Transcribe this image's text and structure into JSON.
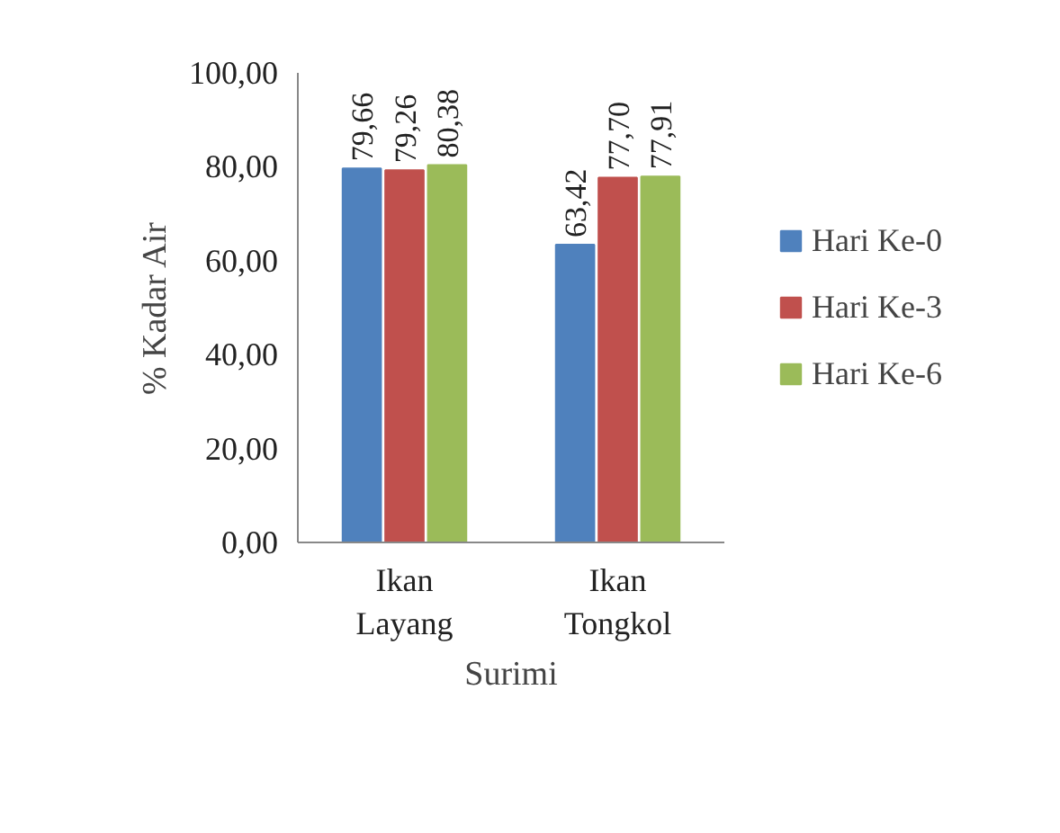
{
  "chart_data": {
    "type": "bar",
    "xlabel": "Surimi",
    "ylabel": "% Kadar Air",
    "categories": [
      "Ikan Layang",
      "Ikan Tongkol"
    ],
    "series": [
      {
        "name": "Hari Ke-0",
        "color": "#4f81bd",
        "values": [
          79.66,
          63.42
        ],
        "value_labels": [
          "79,66",
          "63,42"
        ]
      },
      {
        "name": "Hari Ke-3",
        "color": "#c0504d",
        "values": [
          79.26,
          77.7
        ],
        "value_labels": [
          "79,26",
          "77,70"
        ]
      },
      {
        "name": "Hari Ke-6",
        "color": "#9bbb59",
        "values": [
          80.38,
          77.91
        ],
        "value_labels": [
          "80,38",
          "77,91"
        ]
      }
    ],
    "ylim": [
      0,
      100
    ],
    "yticks": [
      {
        "value": 0,
        "label": "0,00"
      },
      {
        "value": 20,
        "label": "20,00"
      },
      {
        "value": 40,
        "label": "40,00"
      },
      {
        "value": 60,
        "label": "60,00"
      },
      {
        "value": 80,
        "label": "80,00"
      },
      {
        "value": 100,
        "label": "100,00"
      }
    ],
    "grid": false,
    "legend": "right"
  }
}
